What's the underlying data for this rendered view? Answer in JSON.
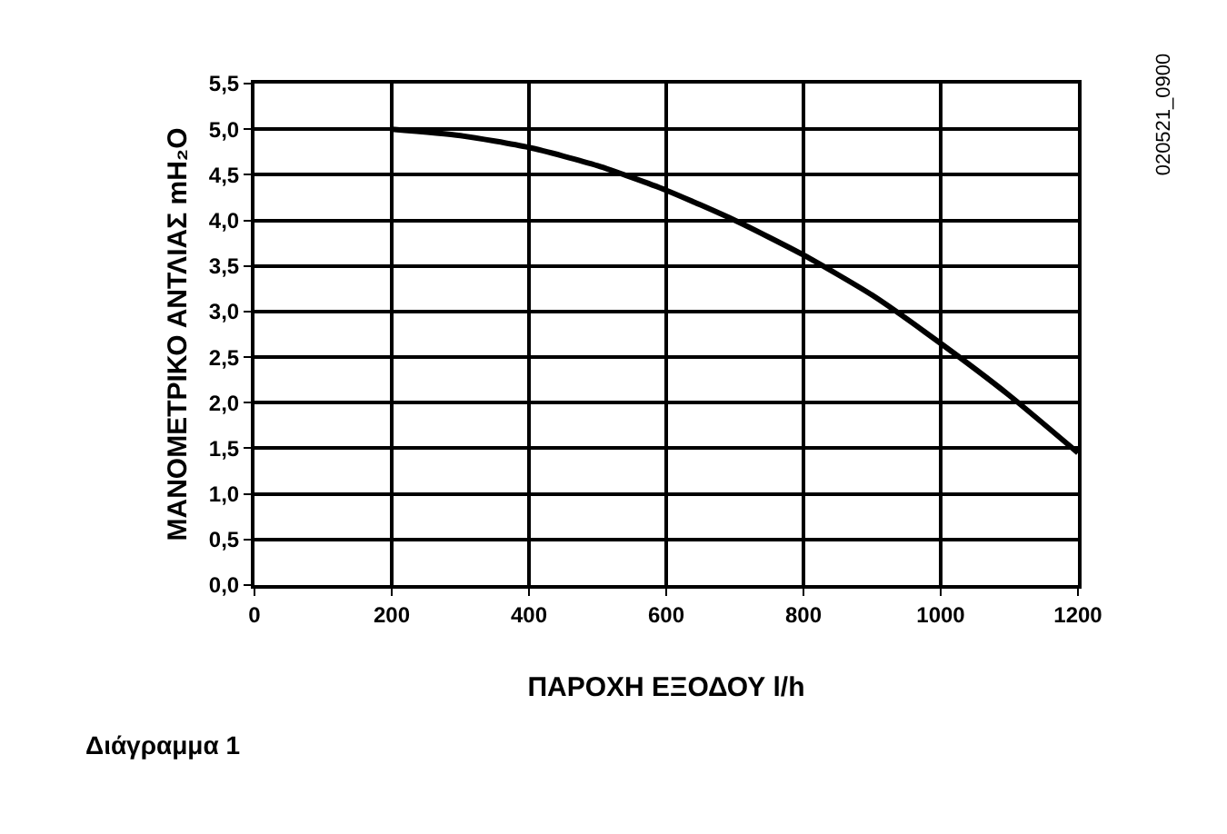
{
  "chart_data": {
    "type": "line",
    "xlabel": "ΠΑΡΟΧΗ ΕΞΟΔΟΥ l/h",
    "ylabel": "ΜΑΝΟΜΕΤΡΙΚΟ ΑΝΤΛΙΑΣ mH₂O",
    "x": [
      200,
      300,
      400,
      500,
      600,
      700,
      800,
      900,
      1000,
      1100,
      1200
    ],
    "series": [
      {
        "color": "#000000",
        "values": [
          5.0,
          4.93,
          4.8,
          4.6,
          4.33,
          4.0,
          3.62,
          3.18,
          2.65,
          2.08,
          1.45
        ]
      }
    ],
    "xlim": [
      0,
      1200
    ],
    "xticks": [
      0,
      200,
      400,
      600,
      800,
      1000,
      1200
    ],
    "ylim": [
      0,
      5.5
    ],
    "yticks": [
      {
        "value": 0,
        "label": "0,0"
      },
      {
        "value": 0.5,
        "label": "0,5"
      },
      {
        "value": 1,
        "label": "1,0"
      },
      {
        "value": 1.5,
        "label": "1,5"
      },
      {
        "value": 2,
        "label": "2,0"
      },
      {
        "value": 2.5,
        "label": "2,5"
      },
      {
        "value": 3,
        "label": "3,0"
      },
      {
        "value": 3.5,
        "label": "3,5"
      },
      {
        "value": 4,
        "label": "4,0"
      },
      {
        "value": 4.5,
        "label": "4,5"
      },
      {
        "value": 5,
        "label": "5,0"
      },
      {
        "value": 5.5,
        "label": "5,5"
      }
    ],
    "grid": true,
    "marker": "none",
    "line_style": "solid",
    "annotations": [
      "020521_0900",
      "Διάγραμμα 1"
    ]
  }
}
